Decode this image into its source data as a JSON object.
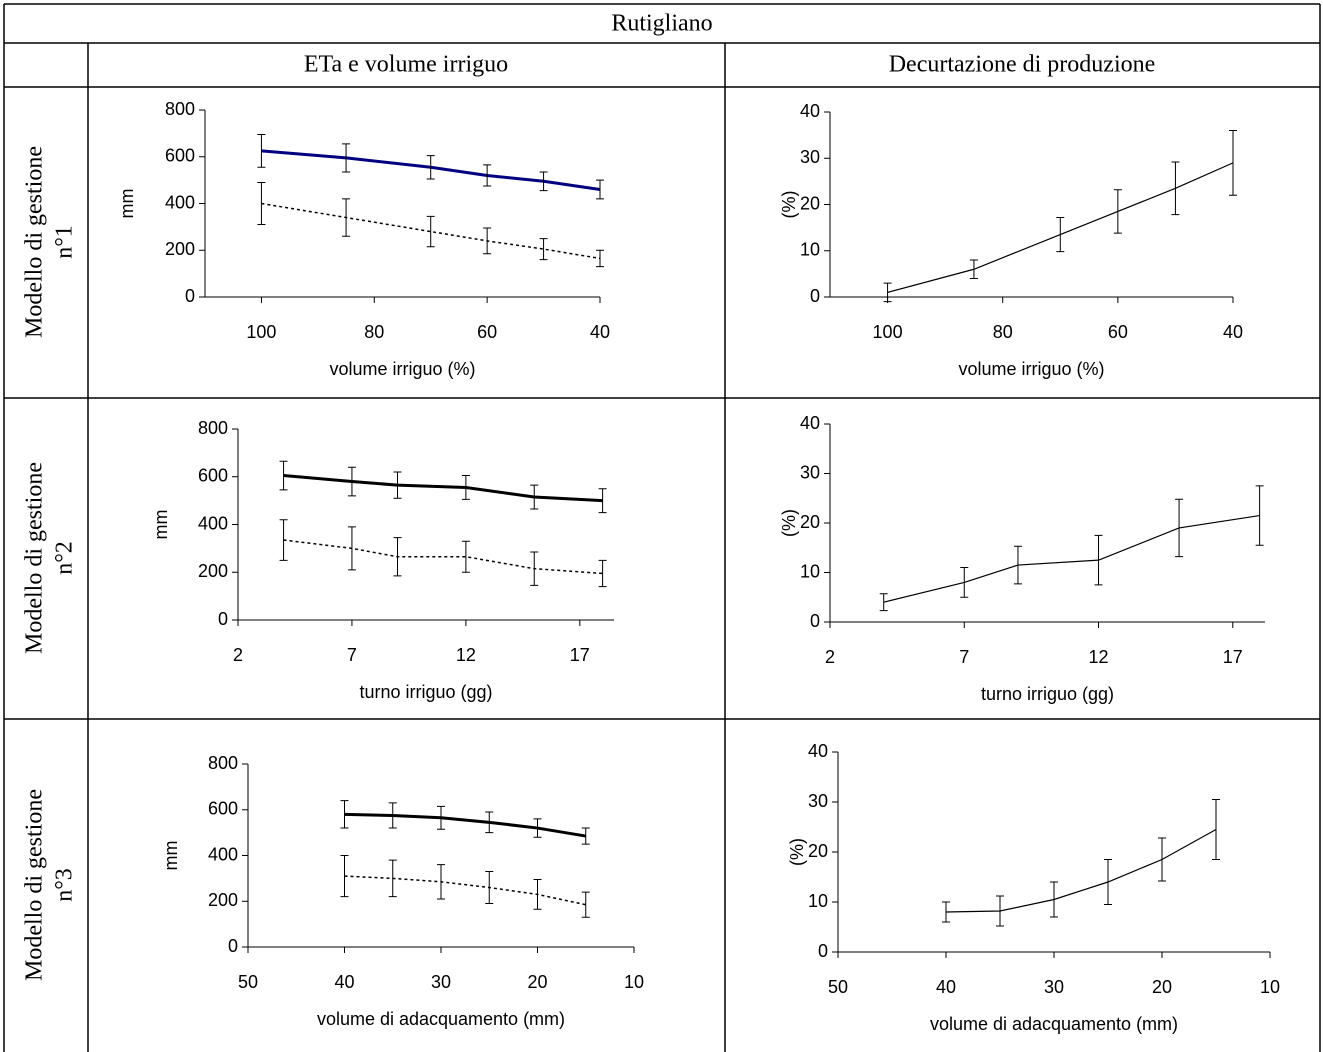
{
  "table": {
    "title": "Rutigliano",
    "headers": [
      "ETa e volume irriguo",
      "Decurtazione di produzione"
    ],
    "row_labels": [
      [
        "Modello di gestione",
        "n°1"
      ],
      [
        "Modello di gestione",
        "n°2"
      ],
      [
        "Modello di gestione",
        "n°3"
      ]
    ]
  },
  "chart_data": [
    {
      "type": "line",
      "xlabel": "volume irriguo (%)",
      "ylabel": "mm",
      "x": [
        100,
        85,
        70,
        60,
        50,
        40
      ],
      "xlim": [
        110,
        40
      ],
      "xticks": [
        100,
        80,
        60,
        40
      ],
      "ylim": [
        0,
        800
      ],
      "yticks": [
        0,
        200,
        400,
        600,
        800
      ],
      "series": [
        {
          "color": "#000080",
          "line_style": "bold",
          "values": [
            625,
            595,
            555,
            520,
            495,
            460
          ],
          "errors": [
            70,
            60,
            50,
            45,
            40,
            40
          ]
        },
        {
          "color": "#000000",
          "line_style": "dotted",
          "values": [
            400,
            340,
            280,
            240,
            205,
            165
          ],
          "errors": [
            90,
            80,
            65,
            55,
            45,
            35
          ]
        }
      ]
    },
    {
      "type": "line",
      "xlabel": "volume irriguo (%)",
      "ylabel": "(%)",
      "x": [
        100,
        85,
        70,
        60,
        50,
        40
      ],
      "xlim": [
        110,
        40
      ],
      "xticks": [
        100,
        80,
        60,
        40
      ],
      "ylim": [
        0,
        40
      ],
      "yticks": [
        0,
        10,
        20,
        30,
        40
      ],
      "series": [
        {
          "color": "#000000",
          "line_style": "thin",
          "values": [
            1,
            6,
            13.5,
            18.5,
            23.5,
            29
          ],
          "errors": [
            2,
            2,
            3.7,
            4.7,
            5.7,
            7
          ]
        }
      ]
    },
    {
      "type": "line",
      "xlabel": "turno irriguo (gg)",
      "ylabel": "mm",
      "x": [
        4,
        7,
        9,
        12,
        15,
        18
      ],
      "xlim": [
        2,
        18.5
      ],
      "xticks": [
        2,
        7,
        12,
        17
      ],
      "ylim": [
        0,
        800
      ],
      "yticks": [
        0,
        200,
        400,
        600,
        800
      ],
      "series": [
        {
          "color": "#000000",
          "line_style": "bold",
          "values": [
            605,
            580,
            565,
            555,
            515,
            500
          ],
          "errors": [
            60,
            60,
            55,
            50,
            50,
            50
          ]
        },
        {
          "color": "#000000",
          "line_style": "dotted",
          "values": [
            335,
            300,
            265,
            265,
            215,
            195
          ],
          "errors": [
            85,
            90,
            80,
            65,
            70,
            55
          ]
        }
      ]
    },
    {
      "type": "line",
      "xlabel": "turno irriguo (gg)",
      "ylabel": "(%)",
      "x": [
        4,
        7,
        9,
        12,
        15,
        18
      ],
      "xlim": [
        2,
        18.2
      ],
      "xticks": [
        2,
        7,
        12,
        17
      ],
      "ylim": [
        0,
        40
      ],
      "yticks": [
        0,
        10,
        20,
        30,
        40
      ],
      "series": [
        {
          "color": "#000000",
          "line_style": "thin",
          "values": [
            4,
            8,
            11.5,
            12.5,
            19,
            21.5
          ],
          "errors": [
            1.7,
            3,
            3.8,
            5,
            5.8,
            6
          ]
        }
      ]
    },
    {
      "type": "line",
      "xlabel": "volume di adacquamento (mm)",
      "ylabel": "mm",
      "x": [
        40,
        35,
        30,
        25,
        20,
        15
      ],
      "xlim": [
        50,
        10
      ],
      "xticks": [
        50,
        40,
        30,
        20,
        10
      ],
      "ylim": [
        0,
        800
      ],
      "yticks": [
        0,
        200,
        400,
        600,
        800
      ],
      "series": [
        {
          "color": "#000000",
          "line_style": "bold",
          "values": [
            580,
            575,
            565,
            545,
            520,
            485
          ],
          "errors": [
            60,
            55,
            50,
            45,
            40,
            35
          ]
        },
        {
          "color": "#000000",
          "line_style": "dotted",
          "values": [
            310,
            300,
            285,
            260,
            230,
            185
          ],
          "errors": [
            90,
            80,
            75,
            70,
            65,
            55
          ]
        }
      ]
    },
    {
      "type": "line",
      "xlabel": "volume di adacquamento (mm)",
      "ylabel": "(%)",
      "x": [
        40,
        35,
        30,
        25,
        20,
        15
      ],
      "xlim": [
        50,
        10
      ],
      "xticks": [
        50,
        40,
        30,
        20,
        10
      ],
      "ylim": [
        0,
        40
      ],
      "yticks": [
        0,
        10,
        20,
        30,
        40
      ],
      "series": [
        {
          "color": "#000000",
          "line_style": "thin",
          "values": [
            8,
            8.2,
            10.5,
            14,
            18.5,
            24.5
          ],
          "errors": [
            2,
            3,
            3.5,
            4.5,
            4.3,
            6
          ]
        }
      ]
    }
  ]
}
